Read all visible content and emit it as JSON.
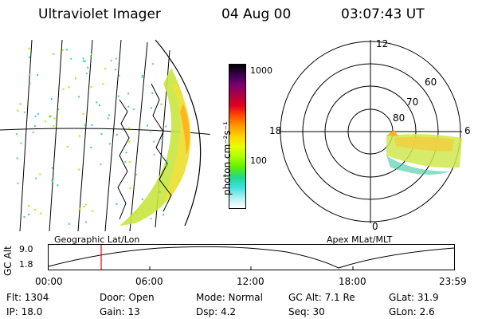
{
  "header": {
    "instrument": "Ultraviolet Imager",
    "date": "04 Aug 00",
    "time": "03:07:43 UT"
  },
  "geo_panel": {
    "label": "Geographic Lat/Lon"
  },
  "polar_panel": {
    "label": "Apex MLat/MLT",
    "mlt_labels": [
      "12",
      "18",
      "6",
      "0"
    ],
    "lat_labels": [
      "60",
      "70",
      "80"
    ]
  },
  "colorbar": {
    "unit_label": "photon cm⁻²s⁻¹",
    "tick_labels": [
      "1000",
      "100"
    ],
    "colors": [
      "#000000",
      "#3a0050",
      "#7a0070",
      "#b00040",
      "#e00020",
      "#ff5000",
      "#ff9a00",
      "#ffd200",
      "#e8ff00",
      "#a8ff00",
      "#60f000",
      "#20d890",
      "#40e0e0",
      "#b0f0f0",
      "#ffffff"
    ]
  },
  "altitude_panel": {
    "ylabel": "GC Alt",
    "y_ticks": [
      "9.0",
      "1.8"
    ],
    "x_ticks": [
      "00:00",
      "06:00",
      "12:00",
      "18:00",
      "23:59"
    ],
    "marker_color": "#ff0000"
  },
  "status": {
    "flt": "Flt: 1304",
    "ip": "IP: 18.0",
    "door": "Door: Open",
    "gain": "Gain: 13",
    "mode": "Mode: Normal",
    "dsp": "Dsp:    4.2",
    "gc_alt": "GC Alt: 7.1 Re",
    "seq": "Seq: 30",
    "glat": "GLat:  31.9",
    "glon": "GLon:    2.6"
  }
}
